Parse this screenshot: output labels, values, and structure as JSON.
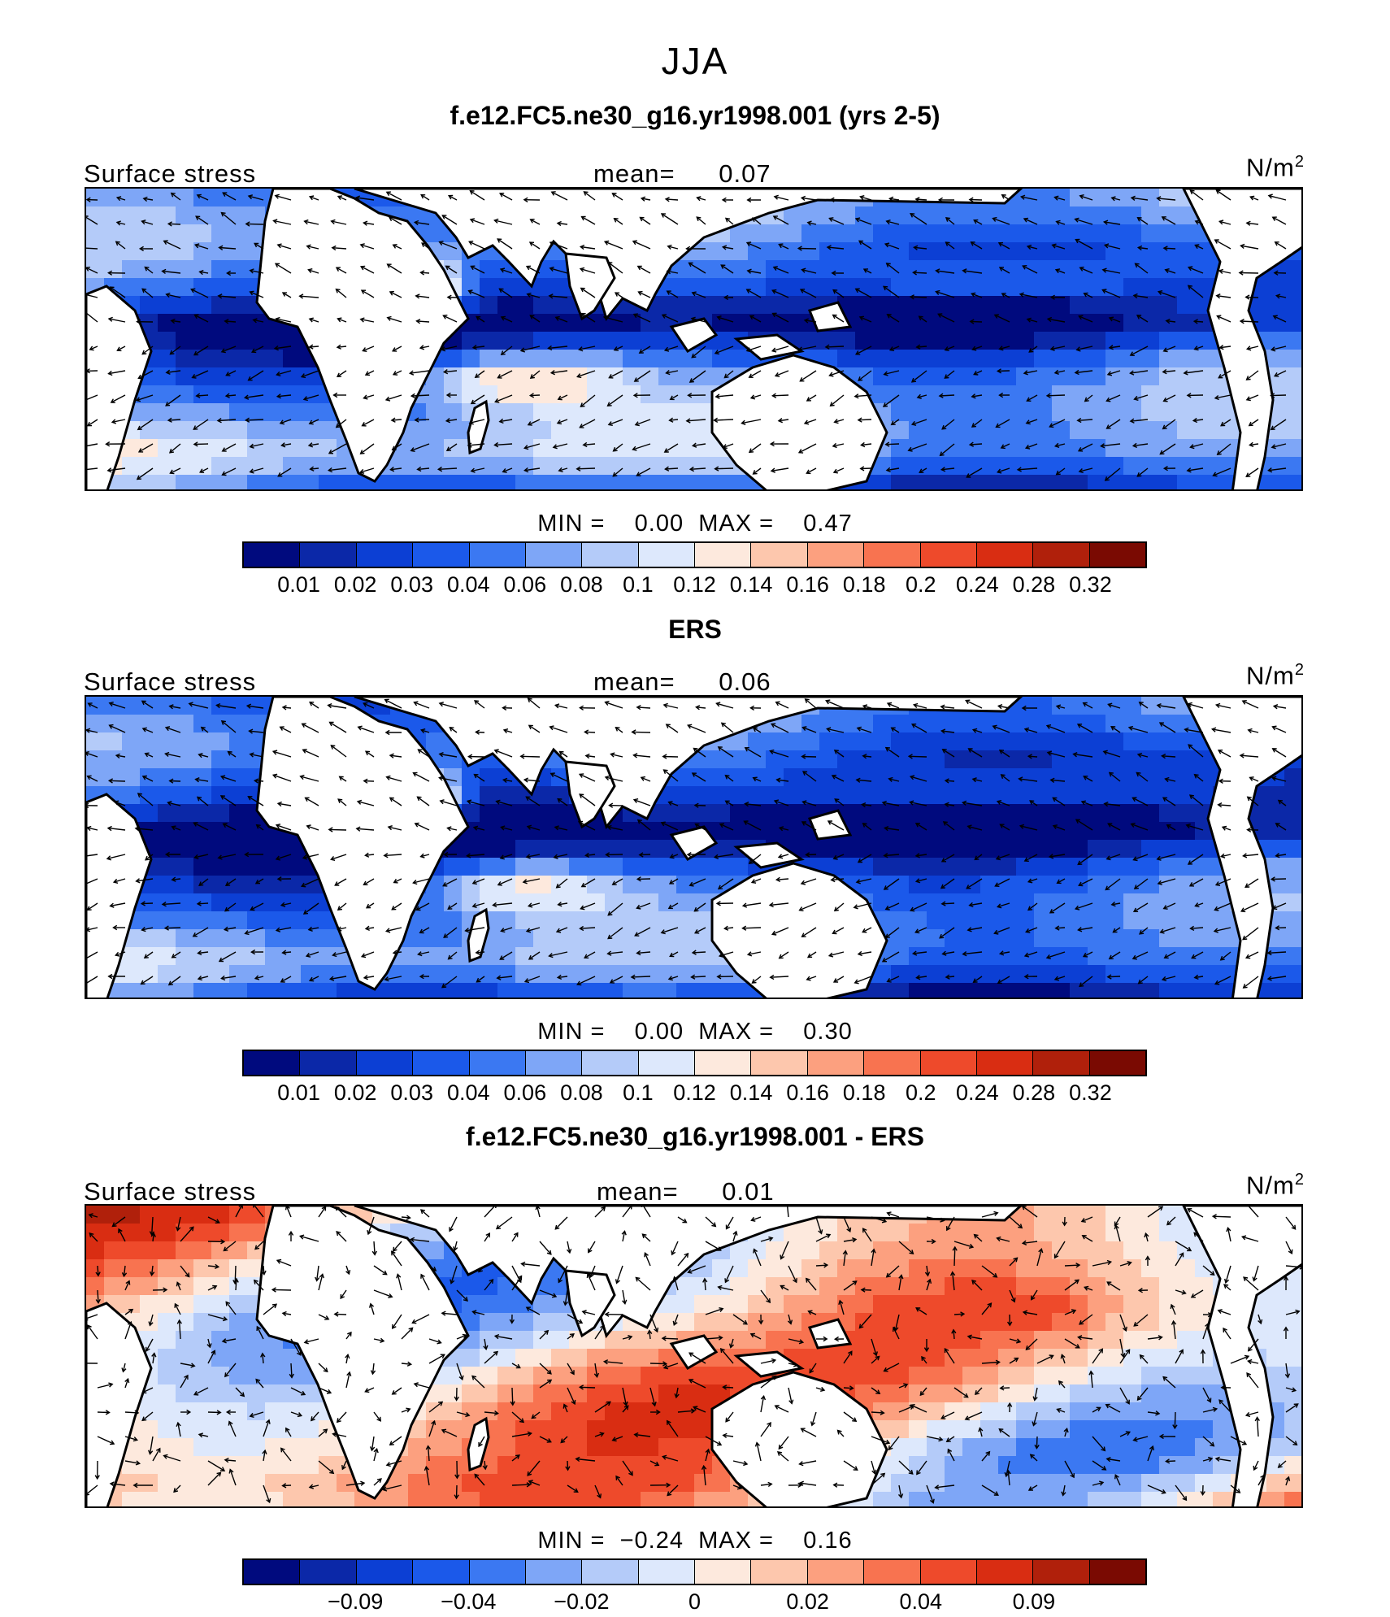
{
  "figure": {
    "season": "JJA",
    "colors": {
      "seq_scale": [
        "#000a7e",
        "#0b28a8",
        "#0c3fd4",
        "#1b59ea",
        "#3b78f2",
        "#7ea6f7",
        "#b4cbf9",
        "#dde8fc",
        "#fde9dd",
        "#fdc7ad",
        "#fca07f",
        "#f87350",
        "#ee4a2b",
        "#d92d12",
        "#b0200b",
        "#7a0a02"
      ],
      "diff_scale": [
        "#000a7e",
        "#0b28a8",
        "#0c3fd4",
        "#1b59ea",
        "#3b78f2",
        "#7ea6f7",
        "#b4cbf9",
        "#dde8fc",
        "#fde9dd",
        "#fdc7ad",
        "#fca07f",
        "#f87350",
        "#ee4a2b",
        "#d92d12",
        "#b0200b",
        "#7a0a02"
      ],
      "land": "#ffffff",
      "coastline": "#000000"
    },
    "panels": [
      {
        "title": "f.e12.FC5.ne30_g16.yr1998.001 (yrs 2-5)",
        "variable": "Surface stress",
        "mean_label": "mean=",
        "mean_value": "0.07",
        "units": "N/m",
        "units_exp": "2",
        "min_label": "MIN =",
        "min_value": "0.00",
        "max_label": "MAX =",
        "max_value": "0.47",
        "colorbar_ticks": [
          "0.01",
          "0.02",
          "0.03",
          "0.04",
          "0.06",
          "0.08",
          "0.1",
          "0.12",
          "0.14",
          "0.16",
          "0.18",
          "0.2",
          "0.24",
          "0.28",
          "0.32"
        ]
      },
      {
        "title": "ERS",
        "variable": "Surface stress",
        "mean_label": "mean=",
        "mean_value": "0.06",
        "units": "N/m",
        "units_exp": "2",
        "min_label": "MIN =",
        "min_value": "0.00",
        "max_label": "MAX =",
        "max_value": "0.30",
        "colorbar_ticks": [
          "0.01",
          "0.02",
          "0.03",
          "0.04",
          "0.06",
          "0.08",
          "0.1",
          "0.12",
          "0.14",
          "0.16",
          "0.18",
          "0.2",
          "0.24",
          "0.28",
          "0.32"
        ]
      },
      {
        "title": "f.e12.FC5.ne30_g16.yr1998.001 - ERS",
        "variable": "Surface stress",
        "mean_label": "mean=",
        "mean_value": "0.01",
        "units": "N/m",
        "units_exp": "2",
        "min_label": "MIN =",
        "min_value": "−0.24",
        "max_label": "MAX =",
        "max_value": "0.16",
        "colorbar_ticks": [
          "−0.09",
          "−0.04",
          "−0.02",
          "0",
          "0.02",
          "0.04",
          "0.09"
        ]
      }
    ]
  }
}
